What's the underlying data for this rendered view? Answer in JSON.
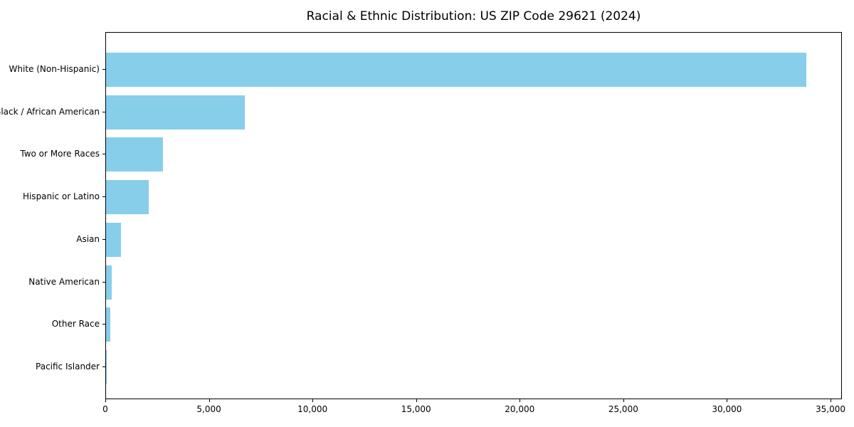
{
  "title": "Racial & Ethnic Distribution: US ZIP Code 29621 (2024)",
  "chart_data": {
    "type": "bar",
    "orientation": "horizontal",
    "title": "Racial & Ethnic Distribution: US ZIP Code 29621 (2024)",
    "categories": [
      "White (Non-Hispanic)",
      "Black / African American",
      "Two or More Races",
      "Hispanic or Latino",
      "Asian",
      "Native American",
      "Other Race",
      "Pacific Islander"
    ],
    "values": [
      33800,
      6700,
      2750,
      2050,
      720,
      270,
      200,
      15
    ],
    "xlabel": "",
    "ylabel": "",
    "xlim": [
      0,
      35550
    ],
    "xticks": [
      0,
      5000,
      10000,
      15000,
      20000,
      25000,
      30000,
      35000
    ],
    "xtick_labels": [
      "0",
      "5,000",
      "10,000",
      "15,000",
      "20,000",
      "25,000",
      "30,000",
      "35,000"
    ],
    "bar_color": "#87CEEB",
    "axis_color": "#000000",
    "background_color": "#ffffff",
    "grid": false,
    "legend": false
  }
}
